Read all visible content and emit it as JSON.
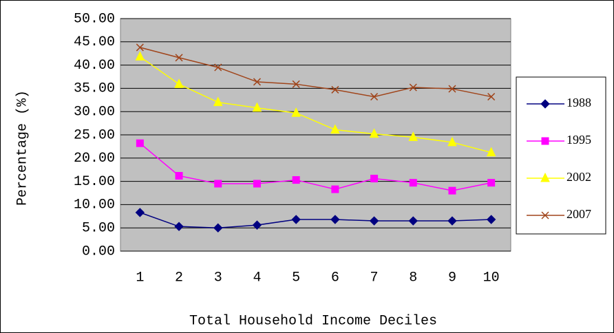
{
  "chart_data": {
    "type": "line",
    "x_label": "Total Household Income Deciles",
    "y_label": "Percentage (%)",
    "categories": [
      1,
      2,
      3,
      4,
      5,
      6,
      7,
      8,
      9,
      10
    ],
    "series": [
      {
        "name": "1988",
        "color": "#000080",
        "marker": "diamond",
        "values": [
          8.3,
          5.3,
          5.0,
          5.6,
          6.8,
          6.8,
          6.5,
          6.5,
          6.5,
          6.8
        ]
      },
      {
        "name": "1995",
        "color": "#ff00ff",
        "marker": "square",
        "values": [
          23.2,
          16.2,
          14.5,
          14.5,
          15.3,
          13.3,
          15.6,
          14.7,
          13.0,
          14.7
        ]
      },
      {
        "name": "2002",
        "color": "#ffff00",
        "marker": "triangle",
        "values": [
          41.8,
          35.9,
          32.0,
          30.8,
          29.7,
          26.1,
          25.2,
          24.5,
          23.4,
          21.2
        ]
      },
      {
        "name": "2007",
        "color": "#a0441a",
        "marker": "x",
        "values": [
          43.8,
          41.6,
          39.5,
          36.4,
          35.9,
          34.7,
          33.2,
          35.2,
          34.9,
          33.2
        ]
      }
    ],
    "ylim": [
      0,
      50
    ],
    "yticks": [
      {
        "value": 0,
        "label": "0.00"
      },
      {
        "value": 5,
        "label": "5.00"
      },
      {
        "value": 10,
        "label": "10.00"
      },
      {
        "value": 15,
        "label": "15.00"
      },
      {
        "value": 20,
        "label": "20.00"
      },
      {
        "value": 25,
        "label": "25.00"
      },
      {
        "value": 30,
        "label": "30.00"
      },
      {
        "value": 35,
        "label": "35.00"
      },
      {
        "value": 40,
        "label": "40.00"
      },
      {
        "value": 45,
        "label": "45.00"
      },
      {
        "value": 50,
        "label": "50.00"
      }
    ],
    "grid": true,
    "plot_background": "#c0c0c0",
    "legend": "right"
  }
}
